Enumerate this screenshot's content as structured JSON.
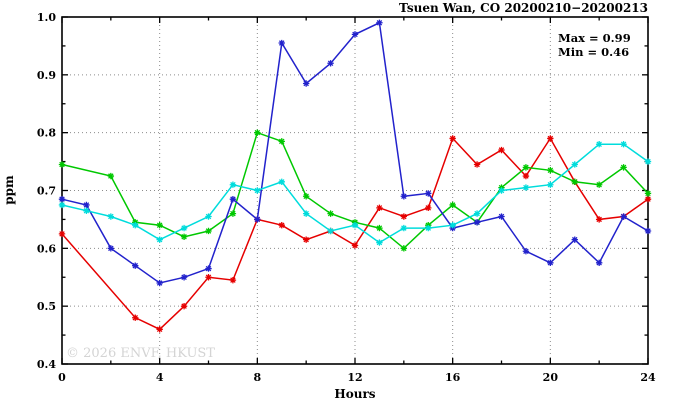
{
  "header": {
    "title": "Tsuen Wan, CO 20200210−20200213"
  },
  "stats": {
    "max_label": "Max = 0.99",
    "min_label": "Min = 0.46"
  },
  "watermark": "© 2026 ENVF, HKUST",
  "chart_data": {
    "type": "line",
    "title": "Tsuen Wan, CO 20200210−20200213",
    "xlabel": "Hours",
    "ylabel": "ppm",
    "xlim": [
      0,
      24
    ],
    "ylim": [
      0.4,
      1.0
    ],
    "x_major_ticks": [
      0,
      4,
      8,
      12,
      16,
      20,
      24
    ],
    "x_minor_ticks": [
      2,
      6,
      10,
      14,
      18,
      22
    ],
    "y_major_ticks": [
      0.4,
      0.5,
      0.6,
      0.7,
      0.8,
      0.9,
      1.0
    ],
    "y_minor_ticks": [
      0.45,
      0.55,
      0.65,
      0.75,
      0.85,
      0.95
    ],
    "grid": "dotted-at-major-ticks",
    "legend_position": "none",
    "max": 0.99,
    "min": 0.46,
    "x": [
      0,
      1,
      2,
      3,
      4,
      5,
      6,
      7,
      8,
      9,
      10,
      11,
      12,
      13,
      14,
      15,
      16,
      17,
      18,
      19,
      20,
      21,
      22,
      23,
      24
    ],
    "series": [
      {
        "name": "red",
        "color": "#e60000",
        "values": [
          0.625,
          null,
          null,
          0.48,
          0.46,
          0.5,
          0.55,
          0.545,
          0.65,
          0.64,
          0.615,
          0.63,
          0.605,
          0.67,
          0.655,
          0.67,
          0.79,
          0.745,
          0.77,
          0.725,
          0.79,
          0.715,
          0.65,
          0.655,
          0.685
        ]
      },
      {
        "name": "green",
        "color": "#00c800",
        "values": [
          0.745,
          null,
          0.725,
          0.645,
          0.64,
          0.62,
          0.63,
          0.66,
          0.8,
          0.785,
          0.69,
          0.66,
          0.645,
          0.635,
          0.6,
          0.64,
          0.675,
          0.645,
          0.705,
          0.74,
          0.735,
          0.715,
          0.71,
          0.74,
          0.695
        ]
      },
      {
        "name": "blue",
        "color": "#2222cc",
        "values": [
          0.685,
          0.675,
          0.6,
          0.57,
          0.54,
          0.55,
          0.565,
          0.685,
          0.65,
          0.955,
          0.885,
          0.92,
          0.97,
          0.99,
          0.69,
          0.695,
          0.635,
          0.645,
          0.655,
          0.595,
          0.575,
          0.615,
          0.575,
          0.655,
          0.63
        ]
      },
      {
        "name": "cyan",
        "color": "#00dcdc",
        "values": [
          0.675,
          0.665,
          0.655,
          0.64,
          0.615,
          0.635,
          0.655,
          0.71,
          0.7,
          0.715,
          0.66,
          0.63,
          0.64,
          0.61,
          0.635,
          0.635,
          0.64,
          0.66,
          0.7,
          0.705,
          0.71,
          0.745,
          0.78,
          0.78,
          0.75
        ]
      }
    ],
    "colors": {
      "grid": "#8c8c8c",
      "frame": "#000000",
      "watermark": "#d4d4d4"
    }
  }
}
